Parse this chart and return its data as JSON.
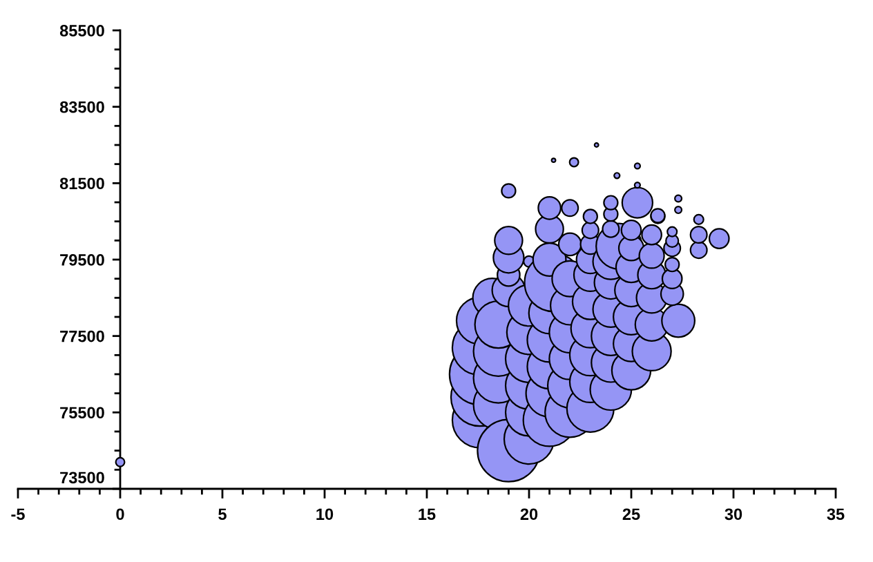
{
  "chart_data": {
    "type": "bubble",
    "color": "#9595f5",
    "x": [
      0,
      17.6,
      17.6,
      17.6,
      17.6,
      17.6,
      18.2,
      18.5,
      18.5,
      18.5,
      18.5,
      19,
      19,
      19,
      19,
      19,
      19,
      20,
      20,
      20,
      20,
      20,
      20,
      20,
      21,
      21,
      21,
      21,
      21,
      21.2,
      21,
      21,
      21,
      21.2,
      22,
      22,
      22,
      22,
      22,
      22,
      22,
      22,
      22.2,
      23,
      23,
      23,
      23,
      23,
      23,
      23,
      23,
      23,
      23,
      23.3,
      24,
      24,
      24,
      24,
      24,
      24,
      24.4,
      24,
      24,
      24,
      24.3,
      25,
      25,
      25,
      25,
      25,
      25,
      25,
      25.3,
      25.3,
      25.3,
      26,
      26,
      26,
      26,
      26,
      26,
      26.3,
      26.3,
      27.3,
      27,
      27,
      27,
      27,
      27,
      27,
      27.3,
      27.3,
      28.3,
      28.3,
      28.3,
      29.3
    ],
    "values": [
      74200,
      75300,
      75900,
      76500,
      77200,
      77900,
      78500,
      75700,
      76400,
      77100,
      77800,
      74500,
      78700,
      79100,
      79550,
      80000,
      81300,
      74800,
      75500,
      76200,
      76900,
      77600,
      78300,
      79450,
      75300,
      76000,
      76700,
      77400,
      78100,
      78900,
      79500,
      80300,
      80850,
      82100,
      75500,
      76200,
      76900,
      77600,
      78300,
      79000,
      79900,
      80850,
      82050,
      75600,
      76300,
      77000,
      77700,
      78400,
      79100,
      79500,
      79900,
      80270,
      80630,
      82500,
      76100,
      76800,
      77500,
      78200,
      78900,
      79450,
      79850,
      80300,
      80690,
      80990,
      81700,
      76600,
      77300,
      78000,
      78700,
      79300,
      79800,
      80270,
      80990,
      81450,
      81950,
      77100,
      77800,
      78500,
      79100,
      79600,
      80150,
      80630,
      80650,
      77900,
      78600,
      79000,
      79370,
      79800,
      79990,
      80230,
      80800,
      81100,
      79750,
      80150,
      80550,
      80050
    ],
    "sizes": [
      0.02,
      0.79,
      0.87,
      0.96,
      0.79,
      0.57,
      0.39,
      0.64,
      0.64,
      0.64,
      0.57,
      1.0,
      0.28,
      0.13,
      0.24,
      0.2,
      0.05,
      0.64,
      0.57,
      0.57,
      0.57,
      0.51,
      0.44,
      0.03,
      0.71,
      0.57,
      0.51,
      0.51,
      0.44,
      0.87,
      0.28,
      0.2,
      0.13,
      0.004,
      0.64,
      0.51,
      0.44,
      0.44,
      0.39,
      0.33,
      0.13,
      0.07,
      0.02,
      0.57,
      0.44,
      0.44,
      0.39,
      0.33,
      0.28,
      0.2,
      0.1,
      0.07,
      0.05,
      0.004,
      0.44,
      0.39,
      0.39,
      0.33,
      0.28,
      0.33,
      0.54,
      0.07,
      0.05,
      0.05,
      0.008,
      0.39,
      0.33,
      0.33,
      0.28,
      0.24,
      0.16,
      0.1,
      0.24,
      0.008,
      0.008,
      0.39,
      0.28,
      0.24,
      0.2,
      0.16,
      0.1,
      0.05,
      0.05,
      0.28,
      0.13,
      0.1,
      0.05,
      0.07,
      0.04,
      0.024,
      0.012,
      0.012,
      0.07,
      0.07,
      0.024,
      0.1
    ],
    "xlim": [
      -5,
      35
    ],
    "xticks": [
      -5,
      {
        "value": -4,
        "label": null
      },
      {
        "value": -3,
        "label": null
      },
      {
        "value": -2,
        "label": null
      },
      {
        "value": -1,
        "label": null
      },
      0,
      {
        "value": 1,
        "label": null
      },
      {
        "value": 2,
        "label": null
      },
      {
        "value": 3,
        "label": null
      },
      {
        "value": 4,
        "label": null
      },
      5,
      {
        "value": 6,
        "label": null
      },
      {
        "value": 7,
        "label": null
      },
      {
        "value": 8,
        "label": null
      },
      {
        "value": 9,
        "label": null
      },
      10,
      {
        "value": 11,
        "label": null
      },
      {
        "value": 12,
        "label": null
      },
      {
        "value": 13,
        "label": null
      },
      {
        "value": 14,
        "label": null
      },
      15,
      {
        "value": 16,
        "label": null
      },
      {
        "value": 17,
        "label": null
      },
      {
        "value": 18,
        "label": null
      },
      {
        "value": 19,
        "label": null
      },
      20,
      {
        "value": 21,
        "label": null
      },
      {
        "value": 22,
        "label": null
      },
      {
        "value": 23,
        "label": null
      },
      {
        "value": 24,
        "label": null
      },
      25,
      {
        "value": 26,
        "label": null
      },
      {
        "value": 27,
        "label": null
      },
      {
        "value": 28,
        "label": null
      },
      {
        "value": 29,
        "label": null
      },
      30,
      {
        "value": 31,
        "label": null
      },
      {
        "value": 32,
        "label": null
      },
      {
        "value": 33,
        "label": null
      },
      {
        "value": 34,
        "label": null
      },
      35
    ],
    "ylim": [
      73500,
      85500
    ],
    "yticks": [
      73500,
      {
        "value": 74000,
        "label": null
      },
      {
        "value": 74500,
        "label": null
      },
      {
        "value": 75000,
        "label": null
      },
      75500,
      {
        "value": 76000,
        "label": null
      },
      {
        "value": 76500,
        "label": null
      },
      {
        "value": 77000,
        "label": null
      },
      77500,
      {
        "value": 78000,
        "label": null
      },
      {
        "value": 78500,
        "label": null
      },
      {
        "value": 79000,
        "label": null
      },
      79500,
      {
        "value": 80000,
        "label": null
      },
      {
        "value": 80500,
        "label": null
      },
      {
        "value": 81000,
        "label": null
      },
      81500,
      {
        "value": 82000,
        "label": null
      },
      {
        "value": 82500,
        "label": null
      },
      {
        "value": 83000,
        "label": null
      },
      83500,
      {
        "value": 84000,
        "label": null
      },
      {
        "value": 84500,
        "label": null
      },
      {
        "value": 85000,
        "label": null
      },
      85500
    ]
  }
}
